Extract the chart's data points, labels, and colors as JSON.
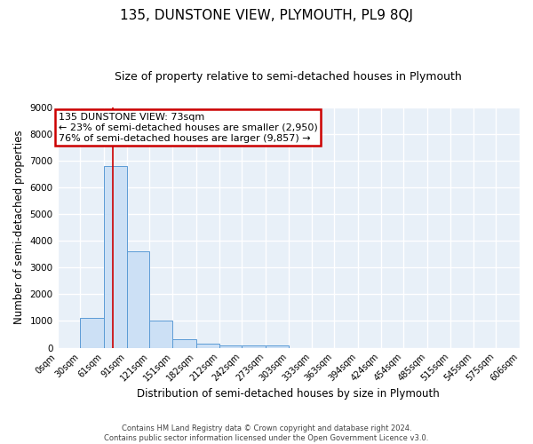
{
  "title": "135, DUNSTONE VIEW, PLYMOUTH, PL9 8QJ",
  "subtitle": "Size of property relative to semi-detached houses in Plymouth",
  "xlabel": "Distribution of semi-detached houses by size in Plymouth",
  "ylabel": "Number of semi-detached properties",
  "bin_edges": [
    0,
    30,
    61,
    91,
    121,
    151,
    182,
    212,
    242,
    273,
    303,
    333,
    363,
    394,
    424,
    454,
    485,
    515,
    545,
    575,
    606
  ],
  "bar_heights": [
    0,
    1100,
    6800,
    3600,
    1000,
    330,
    150,
    100,
    75,
    100,
    0,
    0,
    0,
    0,
    0,
    0,
    0,
    0,
    0,
    0
  ],
  "bar_color": "#cce0f5",
  "bar_edge_color": "#5b9bd5",
  "vline_x": 73,
  "vline_color": "#cc0000",
  "ylim": [
    0,
    9000
  ],
  "yticks": [
    0,
    1000,
    2000,
    3000,
    4000,
    5000,
    6000,
    7000,
    8000,
    9000
  ],
  "annotation_line1": "135 DUNSTONE VIEW: 73sqm",
  "annotation_line2": "← 23% of semi-detached houses are smaller (2,950)",
  "annotation_line3": "76% of semi-detached houses are larger (9,857) →",
  "annotation_box_color": "#cc0000",
  "footer_text": "Contains HM Land Registry data © Crown copyright and database right 2024.\nContains public sector information licensed under the Open Government Licence v3.0.",
  "background_color": "#e8f0f8",
  "grid_color": "#ffffff",
  "fig_background": "#ffffff",
  "title_fontsize": 11,
  "subtitle_fontsize": 9,
  "tick_label_fontsize": 7,
  "axis_label_fontsize": 8.5,
  "footer_fontsize": 6,
  "annotation_fontsize": 8
}
